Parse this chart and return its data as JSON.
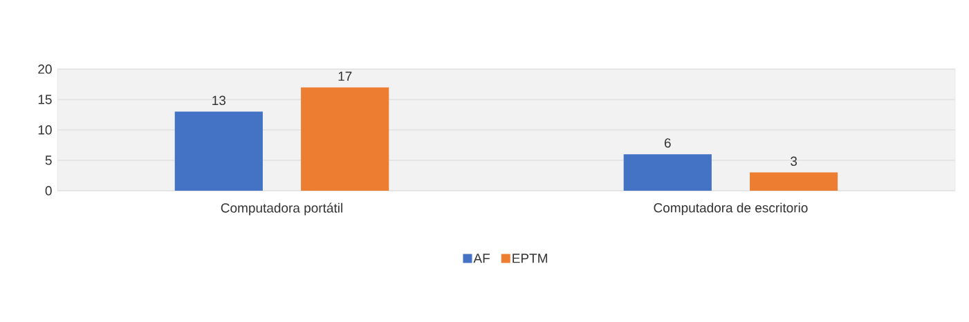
{
  "chart_data": {
    "type": "bar",
    "categories": [
      "Computadora portátil",
      "Computadora de escritorio"
    ],
    "series": [
      {
        "name": "AF",
        "color": "#4472c4",
        "values": [
          13,
          6
        ]
      },
      {
        "name": "EPTM",
        "color": "#ed7d31",
        "values": [
          17,
          3
        ]
      }
    ],
    "ylim": [
      0,
      20
    ],
    "yticks": [
      0,
      5,
      10,
      15,
      20
    ],
    "grid": "y",
    "legend": "bottom",
    "data_labels": true
  }
}
